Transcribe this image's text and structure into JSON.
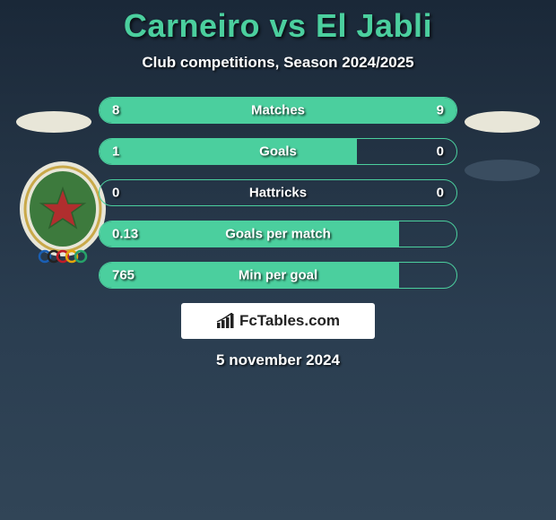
{
  "title": "Carneiro vs El Jabli",
  "subtitle": "Club competitions, Season 2024/2025",
  "date": "5 november 2024",
  "watermark": "FcTables.com",
  "colors": {
    "accent": "#4bcf9e",
    "text": "#ffffff",
    "ellipse_left": "#e8e6d8",
    "ellipse_right_top": "#e8e6d8",
    "ellipse_right_bottom": "#3a4d60",
    "crest_green": "#3d7a3d",
    "crest_gold": "#c9a94a",
    "crest_red": "#b02e2e"
  },
  "layout": {
    "stat_bar_width": 400,
    "stat_bar_height": 30,
    "gap": 16
  },
  "stats": [
    {
      "label": "Matches",
      "left_val": "8",
      "right_val": "9",
      "left_pct": 47,
      "right_pct": 53
    },
    {
      "label": "Goals",
      "left_val": "1",
      "right_val": "0",
      "left_pct": 72,
      "right_pct": 0
    },
    {
      "label": "Hattricks",
      "left_val": "0",
      "right_val": "0",
      "left_pct": 0,
      "right_pct": 0
    },
    {
      "label": "Goals per match",
      "left_val": "0.13",
      "right_val": "",
      "left_pct": 84,
      "right_pct": 0
    },
    {
      "label": "Min per goal",
      "left_val": "765",
      "right_val": "",
      "left_pct": 84,
      "right_pct": 0
    }
  ]
}
